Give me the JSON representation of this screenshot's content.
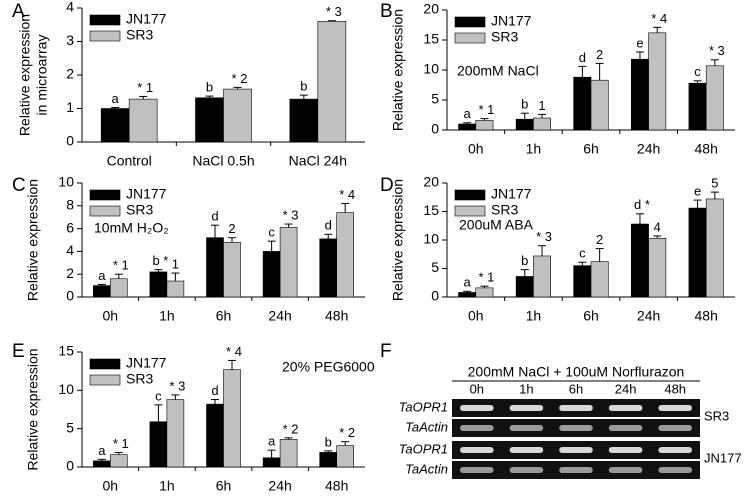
{
  "chart_data": [
    {
      "type": "bar",
      "panel": "A",
      "ylabel": [
        "Relative expression",
        "in microarray"
      ],
      "categories": [
        "Control",
        "NaCl 0.5h",
        "NaCl 24h"
      ],
      "series": [
        {
          "name": "JN177",
          "color": "#000000",
          "values": [
            1.0,
            1.32,
            1.28
          ],
          "errors": [
            0.03,
            0.05,
            0.12
          ],
          "annotations": [
            "a",
            "b",
            "b"
          ]
        },
        {
          "name": "SR3",
          "color": "#c0c0c0",
          "values": [
            1.28,
            1.58,
            3.6
          ],
          "errors": [
            0.08,
            0.05,
            0.02
          ],
          "annotations": [
            "* 1",
            "* 2",
            "* 3"
          ]
        }
      ],
      "ylim": [
        0,
        4
      ],
      "yticks": [
        0,
        1,
        2,
        3,
        4
      ]
    },
    {
      "type": "bar",
      "panel": "B",
      "ylabel": "Relative expression",
      "note": "200mM NaCl",
      "categories": [
        "0h",
        "1h",
        "6h",
        "24h",
        "48h"
      ],
      "series": [
        {
          "name": "JN177",
          "color": "#000000",
          "values": [
            1.0,
            1.8,
            8.8,
            11.8,
            7.8
          ],
          "errors": [
            0.2,
            1.0,
            1.8,
            1.2,
            0.4
          ],
          "annotations": [
            "a",
            "b",
            "d",
            "e",
            "c"
          ]
        },
        {
          "name": "SR3",
          "color": "#c0c0c0",
          "values": [
            1.6,
            2.0,
            8.3,
            16.2,
            10.7
          ],
          "errors": [
            0.3,
            0.6,
            2.8,
            0.9,
            1.0
          ],
          "annotations": [
            "* 1",
            "1",
            "2",
            "* 4",
            "* 3"
          ]
        }
      ],
      "ylim": [
        0,
        20
      ],
      "yticks": [
        0,
        5,
        10,
        15,
        20
      ]
    },
    {
      "type": "bar",
      "panel": "C",
      "ylabel": "Relative expression",
      "note": "10mM H₂O₂",
      "categories": [
        "0h",
        "1h",
        "6h",
        "24h",
        "48h"
      ],
      "series": [
        {
          "name": "JN177",
          "color": "#000000",
          "values": [
            1.0,
            2.2,
            5.2,
            4.0,
            5.1
          ],
          "errors": [
            0.1,
            0.2,
            1.1,
            0.9,
            0.4
          ],
          "annotations": [
            "a",
            "b *",
            "d",
            "c",
            "d"
          ]
        },
        {
          "name": "SR3",
          "color": "#c0c0c0",
          "values": [
            1.6,
            1.4,
            4.8,
            6.1,
            7.4
          ],
          "errors": [
            0.4,
            0.7,
            0.4,
            0.3,
            0.8
          ],
          "annotations": [
            "* 1",
            "1",
            "2",
            "* 3",
            "* 4"
          ]
        }
      ],
      "ylim": [
        0,
        10
      ],
      "yticks": [
        0,
        2,
        4,
        6,
        8,
        10
      ]
    },
    {
      "type": "bar",
      "panel": "D",
      "ylabel": "Relative expression",
      "note": "200uM ABA",
      "categories": [
        "0h",
        "1h",
        "6h",
        "24h",
        "48h"
      ],
      "series": [
        {
          "name": "JN177",
          "color": "#000000",
          "values": [
            0.8,
            3.6,
            5.5,
            12.8,
            15.6
          ],
          "errors": [
            0.2,
            1.2,
            0.6,
            1.8,
            1.4
          ],
          "annotations": [
            "a",
            "b",
            "c",
            "d *",
            "e"
          ]
        },
        {
          "name": "SR3",
          "color": "#c0c0c0",
          "values": [
            1.6,
            7.2,
            6.2,
            10.3,
            17.2
          ],
          "errors": [
            0.3,
            1.8,
            2.3,
            0.4,
            1.2
          ],
          "annotations": [
            "* 1",
            "* 3",
            "2",
            "4",
            "5"
          ]
        }
      ],
      "ylim": [
        0,
        20
      ],
      "yticks": [
        0,
        5,
        10,
        15,
        20
      ]
    },
    {
      "type": "bar",
      "panel": "E",
      "ylabel": "Relative expression",
      "note": "20% PEG6000",
      "categories": [
        "0h",
        "1h",
        "6h",
        "24h",
        "48h"
      ],
      "series": [
        {
          "name": "JN177",
          "color": "#000000",
          "values": [
            0.8,
            5.9,
            8.2,
            1.2,
            1.9
          ],
          "errors": [
            0.2,
            2.2,
            0.6,
            1.0,
            0.2
          ],
          "annotations": [
            "a",
            "c",
            "d",
            "a",
            "b"
          ]
        },
        {
          "name": "SR3",
          "color": "#c0c0c0",
          "values": [
            1.6,
            8.8,
            12.7,
            3.6,
            2.8
          ],
          "errors": [
            0.3,
            0.6,
            1.2,
            0.2,
            0.5
          ],
          "annotations": [
            "* 1",
            "* 3",
            "* 4",
            "* 2",
            "* 2"
          ]
        }
      ],
      "ylim": [
        0,
        15
      ],
      "yticks": [
        0,
        5,
        10,
        15
      ]
    }
  ],
  "gel": {
    "panel": "F",
    "title": "200mM NaCl + 100uM Norflurazon",
    "lanes": [
      "0h",
      "1h",
      "6h",
      "24h",
      "48h"
    ],
    "rows": [
      "TaOPR1",
      "TaActin",
      "TaOPR1",
      "TaActin"
    ],
    "groups": [
      "SR3",
      "JN177"
    ]
  }
}
